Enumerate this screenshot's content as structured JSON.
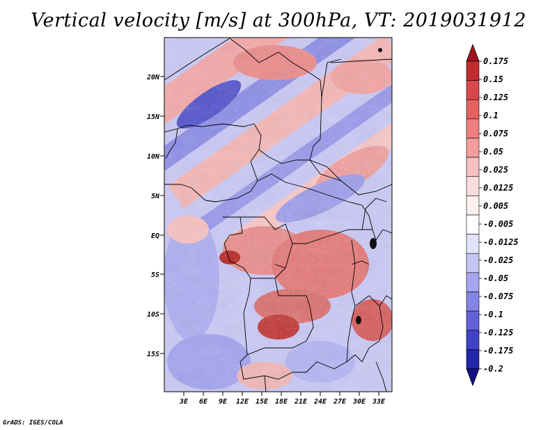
{
  "title": "Vertical velocity [m/s] at 300hPa, VT: 2019031912",
  "credit": "GrADS: IGES/COLA",
  "map": {
    "lat_ticks": [
      "20N",
      "15N",
      "10N",
      "5N",
      "EQ",
      "5S",
      "10S",
      "15S"
    ],
    "lon_ticks": [
      "3E",
      "6E",
      "9E",
      "12E",
      "15E",
      "18E",
      "21E",
      "24E",
      "27E",
      "30E",
      "33E"
    ]
  },
  "colorbar": {
    "levels": [
      "0.175",
      "0.15",
      "0.125",
      "0.1",
      "0.075",
      "0.05",
      "0.025",
      "0.0125",
      "0.005",
      "-0.005",
      "-0.0125",
      "-0.025",
      "-0.05",
      "-0.075",
      "-0.1",
      "-0.125",
      "-0.175",
      "-0.2"
    ],
    "colors": [
      "#a0141e",
      "#c02d30",
      "#d8474a",
      "#e56262",
      "#ef7e7e",
      "#f39d9d",
      "#f8c0c0",
      "#fbdcdc",
      "#fdefef",
      "#ffffff",
      "#e2e2fb",
      "#c6c6f5",
      "#a6a6ee",
      "#8484e4",
      "#6262d8",
      "#4141c6",
      "#2626aa",
      "#121288"
    ]
  }
}
